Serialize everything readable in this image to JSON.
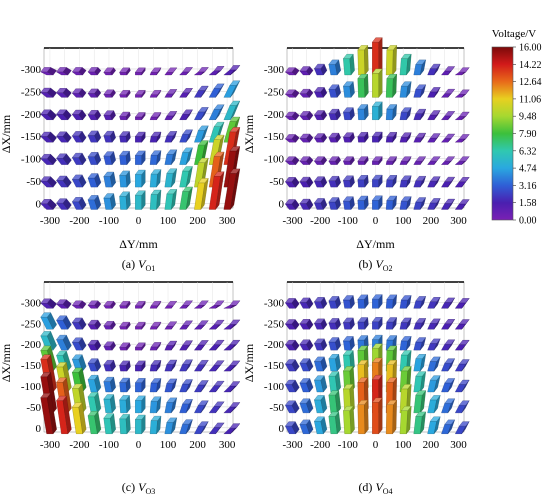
{
  "chart_data": {
    "type": "bar3d-grid",
    "x_axis": {
      "label": "ΔY/mm",
      "ticks": [
        -300,
        -200,
        -100,
        0,
        100,
        200,
        300
      ],
      "range": [
        -320,
        320
      ]
    },
    "y_axis": {
      "label": "ΔX/mm",
      "ticks": [
        -300,
        -250,
        -200,
        -150,
        -100,
        -50,
        0
      ],
      "range": [
        -320,
        10
      ]
    },
    "grid_x": [
      -300,
      -250,
      -200,
      -150,
      -100,
      -50,
      0,
      50,
      100,
      150,
      200,
      250,
      300
    ],
    "grid_y": [
      -300,
      -250,
      -200,
      -150,
      -100,
      -50,
      0
    ],
    "colorbar": {
      "title": "Voltage/V",
      "ticks": [
        "16.00",
        "14.22",
        "12.64",
        "11.06",
        "9.48",
        "7.90",
        "6.32",
        "4.74",
        "3.16",
        "1.58",
        "0.00"
      ],
      "min": 0,
      "max": 16,
      "colors": [
        "#7A0A0A",
        "#D21A1A",
        "#E86A1A",
        "#E8D020",
        "#A6D830",
        "#3CC03C",
        "#30C8B0",
        "#2AA8E0",
        "#2F5FD6",
        "#4A1FB0",
        "#7A20B4"
      ]
    },
    "panels": [
      {
        "caption_prefix": "(a) ",
        "caption_symbol": "V",
        "caption_sub": "O1",
        "values": [
          [
            0.5,
            0.5,
            0.5,
            0.5,
            0.3,
            0.3,
            0.3,
            0.3,
            0.3,
            0.5,
            0.5,
            1.0,
            1.4
          ],
          [
            1.3,
            1.2,
            1.0,
            0.9,
            0.5,
            0.3,
            0.3,
            0.3,
            0.7,
            1.2,
            2.2,
            3.2,
            4.6
          ],
          [
            1.6,
            1.6,
            1.5,
            1.4,
            1.2,
            0.6,
            0.4,
            0.4,
            0.9,
            1.6,
            2.7,
            3.9,
            5.6
          ],
          [
            1.7,
            1.8,
            2.0,
            2.2,
            2.1,
            1.9,
            1.7,
            1.7,
            2.0,
            2.7,
            4.5,
            6.2,
            8.5
          ],
          [
            1.8,
            2.0,
            2.3,
            2.7,
            3.0,
            3.2,
            3.3,
            3.4,
            3.8,
            4.7,
            8.0,
            10.5,
            14.0
          ],
          [
            1.8,
            2.1,
            2.6,
            3.2,
            3.9,
            4.4,
            4.8,
            5.0,
            5.4,
            6.4,
            10.2,
            13.0,
            15.5
          ],
          [
            1.7,
            2.0,
            2.6,
            3.5,
            4.3,
            5.1,
            5.6,
            5.9,
            6.2,
            7.3,
            11.2,
            14.2,
            15.5
          ]
        ]
      },
      {
        "caption_prefix": "(b) ",
        "caption_symbol": "V",
        "caption_sub": "O2",
        "values": [
          [
            0.4,
            0.9,
            2.0,
            3.9,
            6.5,
            10.5,
            14.0,
            10.5,
            6.5,
            3.9,
            2.0,
            0.9,
            0.4
          ],
          [
            0.5,
            0.8,
            1.6,
            2.8,
            4.2,
            7.6,
            10.0,
            7.6,
            4.2,
            2.8,
            1.6,
            0.8,
            0.5
          ],
          [
            0.6,
            0.9,
            1.3,
            1.9,
            2.6,
            4.0,
            5.2,
            4.0,
            2.6,
            1.9,
            1.3,
            0.9,
            0.6
          ],
          [
            0.6,
            0.8,
            1.0,
            1.2,
            1.4,
            1.6,
            1.7,
            1.6,
            1.4,
            1.2,
            1.0,
            0.8,
            0.6
          ],
          [
            0.7,
            0.7,
            0.7,
            0.7,
            0.7,
            0.7,
            0.7,
            0.7,
            0.7,
            0.7,
            0.7,
            0.7,
            0.7
          ],
          [
            1.5,
            1.6,
            1.8,
            2.0,
            2.2,
            2.4,
            2.5,
            2.4,
            2.2,
            2.0,
            1.8,
            1.6,
            1.5
          ],
          [
            1.6,
            1.8,
            2.1,
            2.5,
            2.9,
            3.2,
            3.3,
            3.2,
            2.9,
            2.5,
            2.1,
            1.8,
            1.6
          ]
        ]
      },
      {
        "caption_prefix": "(c) ",
        "caption_symbol": "V",
        "caption_sub": "O3",
        "values": [
          [
            1.4,
            1.0,
            0.5,
            0.5,
            0.3,
            0.3,
            0.3,
            0.3,
            0.3,
            0.5,
            0.5,
            0.5,
            0.5
          ],
          [
            4.6,
            3.2,
            2.2,
            1.2,
            0.7,
            0.3,
            0.3,
            0.3,
            0.5,
            0.9,
            1.0,
            1.2,
            1.3
          ],
          [
            5.6,
            3.9,
            2.7,
            1.6,
            0.9,
            0.4,
            0.4,
            0.6,
            1.2,
            1.4,
            1.5,
            1.6,
            1.6
          ],
          [
            8.5,
            6.2,
            4.5,
            2.7,
            2.0,
            1.7,
            1.7,
            1.9,
            2.1,
            2.2,
            2.0,
            1.8,
            1.7
          ],
          [
            14.0,
            10.5,
            8.0,
            4.7,
            3.8,
            3.4,
            3.3,
            3.2,
            3.0,
            2.7,
            2.3,
            2.0,
            1.8
          ],
          [
            15.5,
            13.0,
            10.2,
            6.4,
            5.4,
            5.0,
            4.8,
            4.4,
            3.9,
            3.2,
            2.6,
            2.1,
            1.8
          ],
          [
            15.5,
            14.2,
            11.2,
            7.3,
            6.2,
            5.9,
            5.6,
            5.1,
            4.3,
            3.5,
            2.6,
            2.0,
            1.7
          ]
        ]
      },
      {
        "caption_prefix": "(d) ",
        "caption_symbol": "V",
        "caption_sub": "O4",
        "values": [
          [
            1.6,
            1.8,
            2.1,
            2.5,
            2.9,
            3.2,
            3.3,
            3.2,
            2.9,
            2.5,
            2.1,
            1.8,
            1.6
          ],
          [
            1.5,
            1.6,
            1.8,
            2.0,
            2.2,
            2.4,
            2.5,
            2.4,
            2.2,
            2.0,
            1.8,
            1.6,
            1.5
          ],
          [
            1.6,
            1.8,
            2.2,
            2.8,
            3.3,
            3.7,
            3.9,
            3.7,
            3.3,
            2.8,
            2.2,
            1.8,
            1.6
          ],
          [
            2.3,
            2.7,
            3.5,
            4.7,
            6.4,
            8.5,
            9.5,
            8.5,
            6.4,
            4.7,
            3.5,
            2.7,
            2.3
          ],
          [
            2.5,
            3.2,
            4.5,
            6.3,
            8.7,
            11.5,
            12.5,
            11.5,
            8.7,
            6.3,
            4.5,
            3.2,
            2.5
          ],
          [
            2.6,
            3.5,
            5.0,
            7.2,
            10.0,
            13.0,
            14.2,
            13.0,
            10.0,
            7.2,
            5.0,
            3.5,
            2.6
          ],
          [
            2.6,
            3.4,
            4.8,
            7.0,
            9.6,
            12.3,
            13.4,
            12.3,
            9.6,
            7.0,
            4.8,
            3.4,
            2.6
          ]
        ]
      }
    ]
  }
}
